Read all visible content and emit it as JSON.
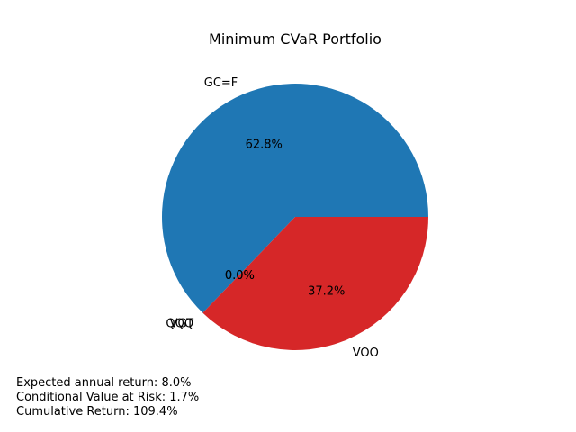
{
  "chart_data": {
    "type": "pie",
    "title": "Minimum CVaR Portfolio",
    "slices": [
      {
        "label": "GC=F",
        "value": 62.8,
        "pct_label": "62.8%",
        "color": "#1f77b4"
      },
      {
        "label": "QQQ",
        "value": 0.0,
        "pct_label": "0.0%",
        "color": "#ff7f0e"
      },
      {
        "label": "VGT",
        "value": 0.0,
        "pct_label": "0.0%",
        "color": "#2ca02c"
      },
      {
        "label": "VOO",
        "value": 37.2,
        "pct_label": "37.2%",
        "color": "#d62728"
      }
    ]
  },
  "stats": {
    "expected_return": "Expected annual return: 8.0%",
    "cvar": "Conditional Value at Risk: 1.7%",
    "cumulative_return": "Cumulative Return: 109.4%"
  }
}
